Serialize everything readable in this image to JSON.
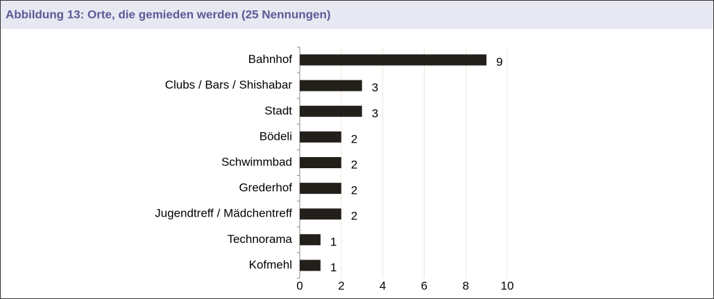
{
  "chart_data": {
    "type": "barh",
    "title": "Abbildung 13: Orte, die gemieden werden (25 Nennungen)",
    "categories": [
      "Bahnhof",
      "Clubs / Bars / Shishabar",
      "Stadt",
      "Bödeli",
      "Schwimmbad",
      "Grederhof",
      "Jugendtreff / Mädchentreff",
      "Technorama",
      "Kofmehl"
    ],
    "values": [
      9,
      3,
      3,
      2,
      2,
      2,
      2,
      1,
      1
    ],
    "color": "#231f1a",
    "xlim": [
      0,
      10
    ],
    "xticks": [
      0,
      2,
      4,
      6,
      8,
      10
    ],
    "grid": true
  }
}
